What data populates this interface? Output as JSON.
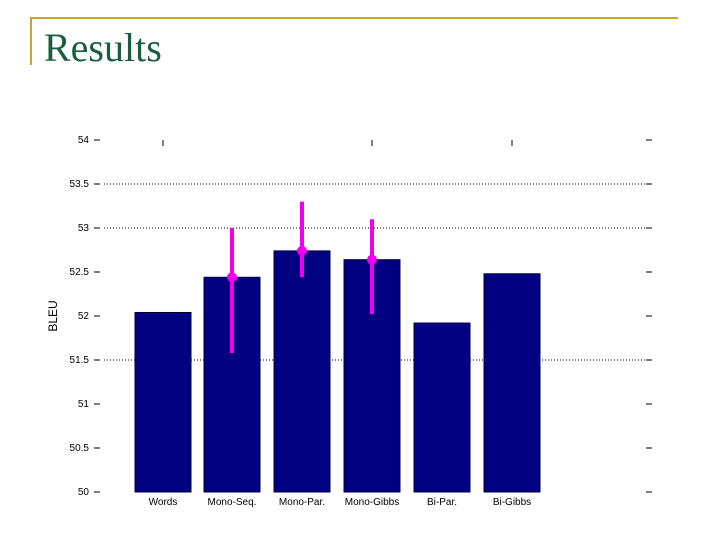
{
  "slide": {
    "title": "Results",
    "accent_color": "#c8a62a",
    "title_color": "#1a5e3f"
  },
  "chart_data": {
    "type": "bar",
    "title": "",
    "xlabel": "",
    "ylabel": "BLEU",
    "ylim": [
      50,
      54
    ],
    "yticks": [
      50,
      50.5,
      51,
      51.5,
      52,
      52.5,
      53,
      53.5,
      54
    ],
    "ytick_labels": [
      "50",
      "50.5",
      "51",
      "51.5",
      "52",
      "52.5",
      "53",
      "53.5",
      "54"
    ],
    "grid_lines": [
      51.5,
      53,
      53.5
    ],
    "bar_color": "#000080",
    "errorbar_color": "#ee00ee",
    "categories": [
      "Words",
      "Mono-Seq.",
      "Mono-Par.",
      "Mono-Gibbs",
      "Bi-Par.",
      "Bi-Gibbs"
    ],
    "values": [
      52.04,
      52.44,
      52.74,
      52.64,
      51.92,
      52.48
    ],
    "error_bars": [
      null,
      {
        "center": 52.44,
        "low": 51.58,
        "high": 53.0
      },
      {
        "center": 52.74,
        "low": 52.44,
        "high": 53.3
      },
      {
        "center": 52.64,
        "low": 52.02,
        "high": 53.1
      },
      null,
      null
    ]
  }
}
